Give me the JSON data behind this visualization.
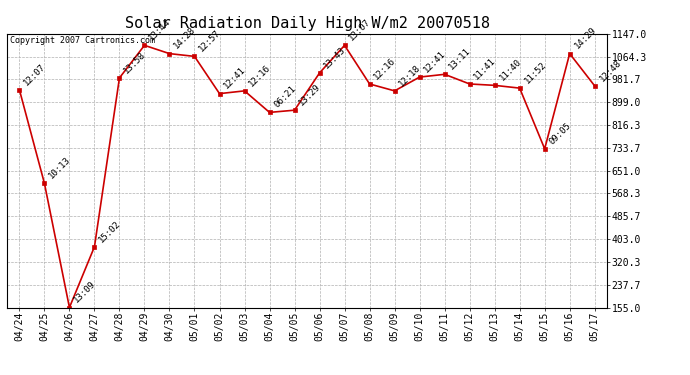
{
  "title": "Solar Radiation Daily High W/m2 20070518",
  "copyright": "Copyright 2007 Cartronics.com",
  "x_labels": [
    "04/24",
    "04/25",
    "04/26",
    "04/27",
    "04/28",
    "04/29",
    "04/30",
    "05/01",
    "05/02",
    "05/03",
    "05/04",
    "05/05",
    "05/06",
    "05/07",
    "05/08",
    "05/09",
    "05/10",
    "05/11",
    "05/12",
    "05/13",
    "05/14",
    "05/15",
    "05/16",
    "05/17"
  ],
  "y_values": [
    944.0,
    605.0,
    155.0,
    375.0,
    987.0,
    1105.0,
    1075.0,
    1065.0,
    930.0,
    940.0,
    862.0,
    870.0,
    1005.0,
    1105.0,
    965.0,
    940.0,
    990.0,
    1000.0,
    965.0,
    960.0,
    950.0,
    730.0,
    1075.0,
    958.0
  ],
  "point_labels": [
    "12:07",
    "10:13",
    "13:09",
    "15:02",
    "13:58",
    "13:44",
    "14:28",
    "12:57",
    "12:41",
    "12:16",
    "06:21",
    "13:29",
    "13:43",
    "13:07",
    "12:16",
    "12:18",
    "12:41",
    "13:11",
    "11:41",
    "11:40",
    "11:52",
    "09:05",
    "14:29",
    "12:48"
  ],
  "line_color": "#cc0000",
  "marker_color": "#cc0000",
  "bg_color": "#ffffff",
  "grid_color": "#b0b0b0",
  "ylim": [
    155.0,
    1147.0
  ],
  "yticks": [
    155.0,
    237.7,
    320.3,
    403.0,
    485.7,
    568.3,
    651.0,
    733.7,
    816.3,
    899.0,
    981.7,
    1064.3,
    1147.0
  ],
  "title_fontsize": 11,
  "label_fontsize": 7,
  "point_label_fontsize": 6.5,
  "copyright_fontsize": 6
}
